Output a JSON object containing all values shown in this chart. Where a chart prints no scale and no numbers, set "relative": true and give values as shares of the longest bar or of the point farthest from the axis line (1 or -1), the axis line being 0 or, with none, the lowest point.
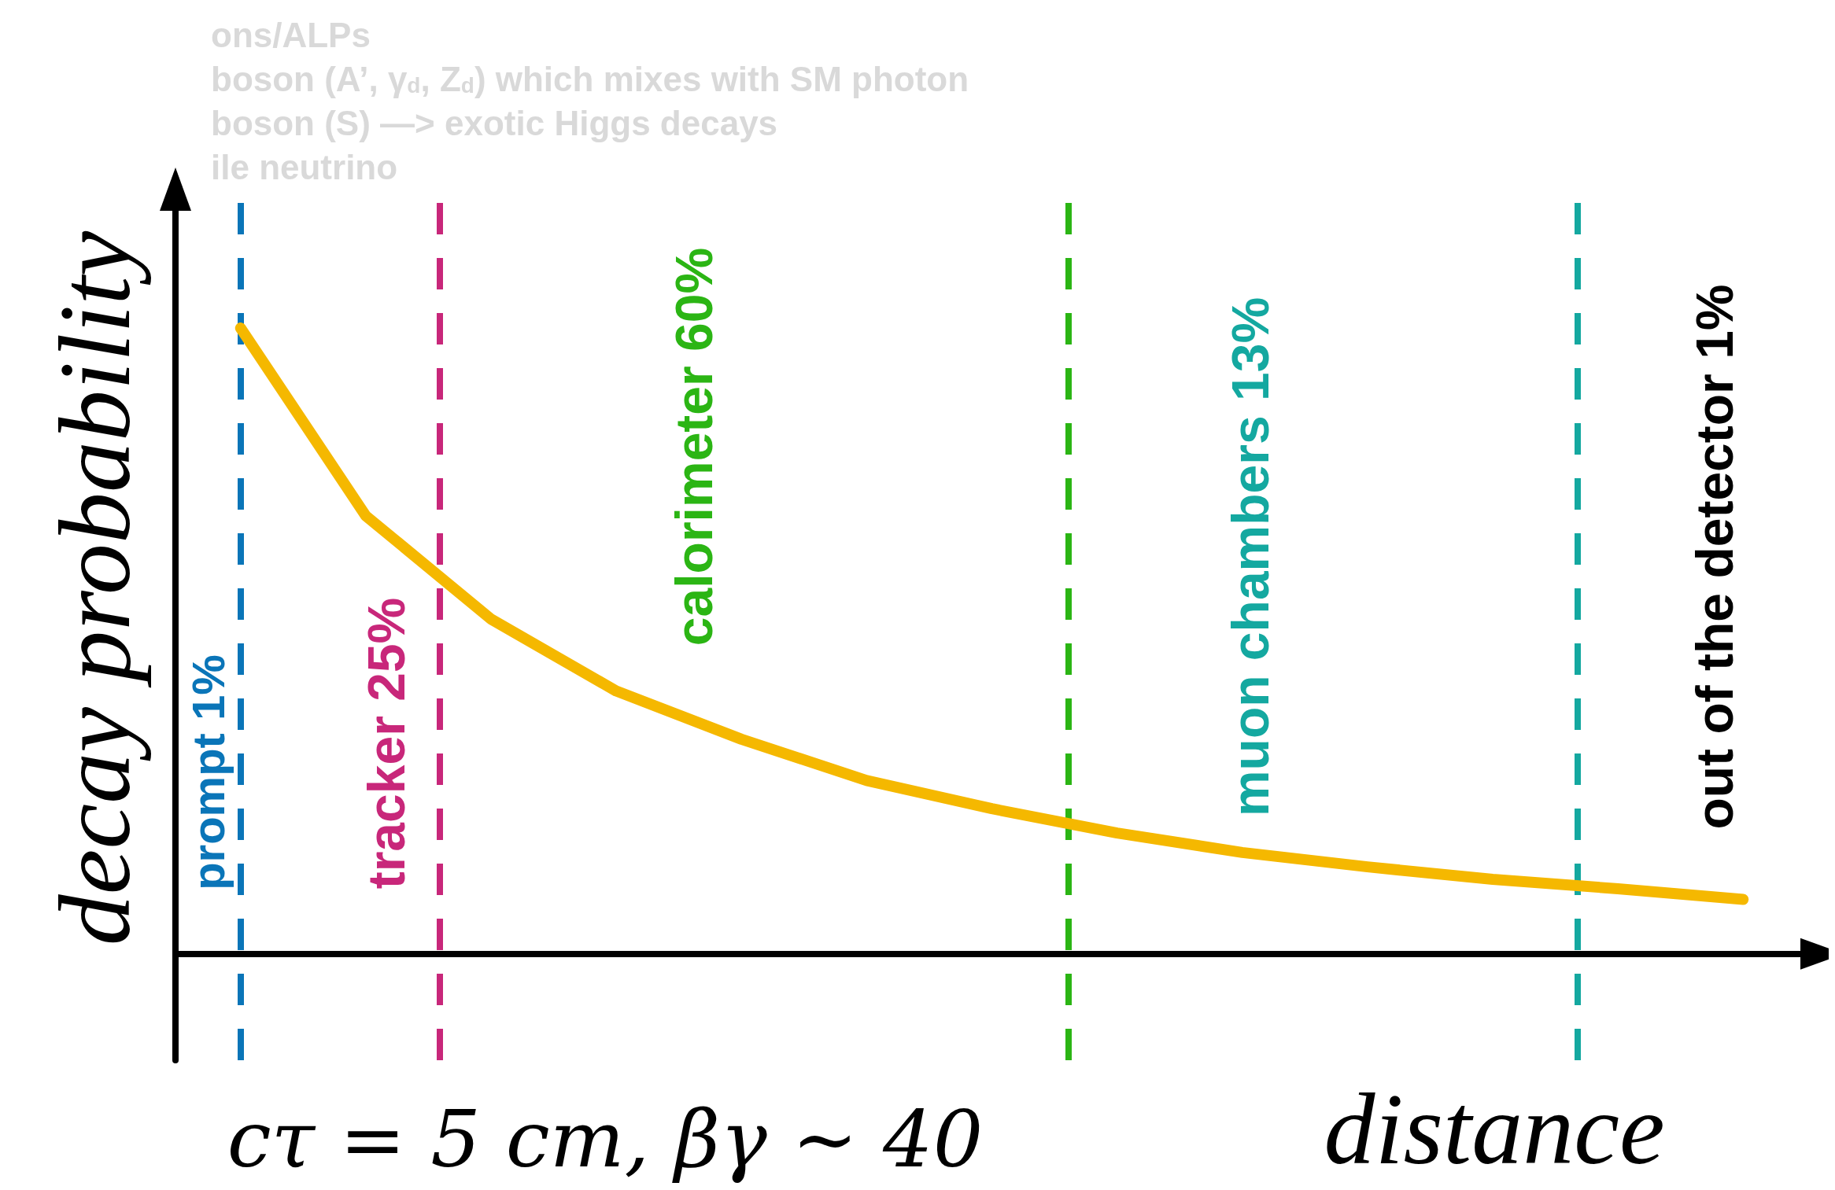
{
  "chart_data": {
    "type": "line",
    "relative": true,
    "xlabel": "distance",
    "ylabel": "decay probability",
    "categories": [
      null,
      null,
      null,
      null,
      null,
      null,
      null,
      null,
      null,
      null,
      null,
      null,
      null
    ],
    "grid": false,
    "line_style": "solid",
    "series": [
      {
        "color": "#f5b800",
        "values": [
          1,
          0.7,
          0.535,
          0.42,
          0.343,
          0.277,
          0.232,
          0.193,
          0.162,
          0.139,
          0.119,
          0.104,
          0.087
        ]
      }
    ],
    "annotations": [
      "ons/ALPs",
      "boson (A’, γ$_{d}$, Z$_{d}$) which mixes with SM photon",
      "boson (S) —> exotic Higgs decays",
      "ile neutrino",
      "out of the detector 1%",
      "cτ = 5 cm, βγ ~ 40",
      "prompt 1%",
      "tracker 25%",
      "calorimeter 60%",
      "muon chambers 13%"
    ]
  }
}
